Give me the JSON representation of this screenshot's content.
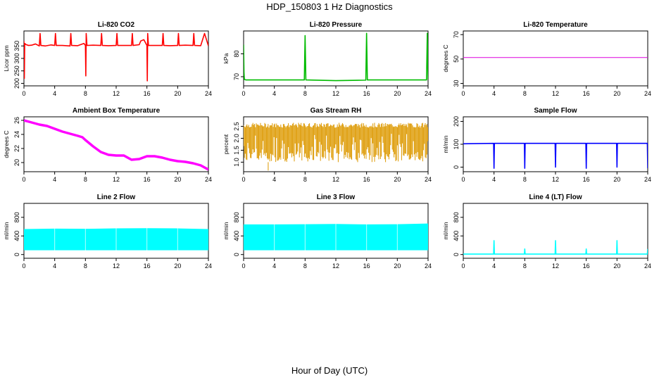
{
  "figure": {
    "title": "HDP_150803  1 Hz Diagnostics",
    "xlabel": "Hour of Day (UTC)"
  },
  "chart_data": [
    {
      "type": "line",
      "title": "Li-820 CO2",
      "ylabel": "Licor ppm",
      "color": "#ff0000",
      "xlim": [
        0,
        24
      ],
      "ylim": [
        190,
        410
      ],
      "yticks": [
        200,
        250,
        300,
        350
      ],
      "xticks": [
        0,
        4,
        8,
        12,
        16,
        20,
        24
      ],
      "x": [
        0,
        0.05,
        0.1,
        0.3,
        0.6,
        1,
        1.5,
        2,
        2.1,
        2.2,
        2.8,
        3.5,
        4,
        4.1,
        4.2,
        5,
        6,
        6.1,
        6.2,
        7,
        7.8,
        8,
        8.05,
        8.1,
        8.2,
        9,
        10,
        10.1,
        10.2,
        11,
        12,
        12.1,
        12.2,
        13,
        14,
        14.1,
        14.2,
        15,
        15.2,
        15.6,
        16,
        16.05,
        16.1,
        16.2,
        17,
        18,
        18.1,
        18.2,
        19,
        20,
        20.1,
        20.2,
        21,
        22,
        22.1,
        22.2,
        23,
        23.5,
        24
      ],
      "y": [
        370,
        220,
        360,
        355,
        352,
        353,
        358,
        350,
        400,
        352,
        350,
        354,
        352,
        400,
        352,
        352,
        350,
        400,
        352,
        351,
        360,
        352,
        230,
        400,
        352,
        353,
        352,
        400,
        352,
        351,
        352,
        400,
        352,
        352,
        352,
        400,
        352,
        355,
        370,
        375,
        352,
        210,
        400,
        352,
        352,
        352,
        400,
        352,
        351,
        352,
        400,
        352,
        353,
        352,
        400,
        352,
        351,
        400,
        350
      ]
    },
    {
      "type": "line",
      "title": "Li-820 Pressure",
      "ylabel": "kPa",
      "color": "#00bb00",
      "xlim": [
        0,
        24
      ],
      "ylim": [
        66,
        90
      ],
      "yticks": [
        70,
        80
      ],
      "xticks": [
        0,
        4,
        8,
        12,
        16,
        20,
        24
      ],
      "x": [
        0,
        0.05,
        0.1,
        0.3,
        4,
        7.9,
        8,
        8.1,
        12,
        15.9,
        16,
        16.1,
        20,
        23.8,
        23.9,
        24
      ],
      "y": [
        84,
        72,
        68.8,
        68.6,
        68.6,
        68.6,
        88,
        68.6,
        68.3,
        68.5,
        89,
        68.6,
        68.6,
        68.6,
        89,
        68.7
      ]
    },
    {
      "type": "line",
      "title": "Li-820 Temperature",
      "ylabel": "degrees C",
      "color": "#dd00dd",
      "xlim": [
        0,
        24
      ],
      "ylim": [
        28,
        73
      ],
      "yticks": [
        30,
        50,
        70
      ],
      "xticks": [
        0,
        4,
        8,
        12,
        16,
        20,
        24
      ],
      "x": [
        0,
        24
      ],
      "y": [
        51.2,
        51.2
      ]
    },
    {
      "type": "line",
      "title": "Ambient Box Temperature",
      "ylabel": "degrees C",
      "color": "#ff00ff",
      "xlim": [
        0,
        24
      ],
      "ylim": [
        18.7,
        26.5
      ],
      "yticks": [
        20,
        22,
        24,
        26
      ],
      "xticks": [
        0,
        4,
        8,
        12,
        16,
        20,
        24
      ],
      "x": [
        0,
        1,
        2,
        3,
        4,
        5,
        6,
        7,
        7.6,
        8,
        9,
        10,
        11,
        12,
        13,
        14,
        15,
        16,
        17,
        18,
        19,
        20,
        21,
        22,
        23,
        23.5,
        24
      ],
      "y": [
        26.0,
        25.7,
        25.4,
        25.2,
        24.8,
        24.4,
        24.1,
        23.8,
        23.6,
        23.2,
        22.3,
        21.5,
        21.1,
        21.0,
        21.0,
        20.4,
        20.5,
        20.9,
        20.9,
        20.7,
        20.4,
        20.2,
        20.1,
        19.9,
        19.6,
        19.3,
        19.0
      ]
    },
    {
      "type": "line",
      "title": "Gas Stream RH",
      "ylabel": "percent",
      "color": "#dd9900",
      "xlim": [
        0,
        24
      ],
      "ylim": [
        0.6,
        2.9
      ],
      "yticks": [
        1.0,
        1.5,
        2.0,
        2.5
      ],
      "xticks": [
        0,
        4,
        8,
        12,
        16,
        20,
        24
      ],
      "x": [
        0,
        24
      ],
      "y": [
        1.0,
        2.6
      ]
    },
    {
      "type": "line",
      "title": "Sample Flow",
      "ylabel": "ml/min",
      "color": "#0000ff",
      "xlim": [
        0,
        24
      ],
      "ylim": [
        -20,
        220
      ],
      "yticks": [
        0,
        100,
        200
      ],
      "xticks": [
        0,
        4,
        8,
        12,
        16,
        20,
        24
      ],
      "x": [
        0,
        3.95,
        4,
        4.05,
        7.95,
        8,
        8.05,
        11.95,
        12,
        12.05,
        15.95,
        16,
        16.05,
        19.95,
        20,
        20.05,
        23.95,
        24
      ],
      "y": [
        102,
        104,
        -5,
        104,
        104,
        -5,
        104,
        104,
        0,
        104,
        104,
        -5,
        104,
        104,
        0,
        104,
        104,
        -5
      ]
    },
    {
      "type": "area",
      "title": "Line 2 Flow",
      "ylabel": "ml/min",
      "color": "#00ffff",
      "xlim": [
        0,
        24
      ],
      "ylim": [
        -80,
        1100
      ],
      "yticks": [
        0,
        400,
        800
      ],
      "xticks": [
        0,
        4,
        8,
        12,
        16,
        20,
        24
      ],
      "x": [
        0,
        4,
        8,
        12,
        16,
        20,
        24
      ],
      "y_min": [
        100,
        100,
        100,
        100,
        100,
        100,
        100
      ],
      "y_max": [
        540,
        550,
        545,
        555,
        560,
        555,
        540
      ]
    },
    {
      "type": "area",
      "title": "Line 3 Flow",
      "ylabel": "ml/min",
      "color": "#00ffff",
      "xlim": [
        0,
        24
      ],
      "ylim": [
        -80,
        1100
      ],
      "yticks": [
        0,
        400,
        800
      ],
      "xticks": [
        0,
        4,
        8,
        12,
        16,
        20,
        24
      ],
      "x": [
        0,
        4,
        8,
        12,
        16,
        20,
        24
      ],
      "y_min": [
        100,
        100,
        100,
        100,
        100,
        100,
        100
      ],
      "y_max": [
        640,
        640,
        645,
        650,
        640,
        645,
        660
      ]
    },
    {
      "type": "line",
      "title": "Line 4 (LT) Flow",
      "ylabel": "ml/min",
      "color": "#00ffff",
      "xlim": [
        0,
        24
      ],
      "ylim": [
        -80,
        1100
      ],
      "yticks": [
        0,
        400,
        800
      ],
      "xticks": [
        0,
        4,
        8,
        12,
        16,
        20,
        24
      ],
      "x": [
        0,
        3.95,
        4,
        4.05,
        7.95,
        8,
        8.05,
        11.95,
        12,
        12.05,
        15.95,
        16,
        16.05,
        19.95,
        20,
        20.05,
        23.95,
        24
      ],
      "y": [
        10,
        10,
        300,
        10,
        10,
        120,
        10,
        10,
        300,
        10,
        10,
        120,
        10,
        10,
        300,
        10,
        10,
        120
      ]
    }
  ]
}
